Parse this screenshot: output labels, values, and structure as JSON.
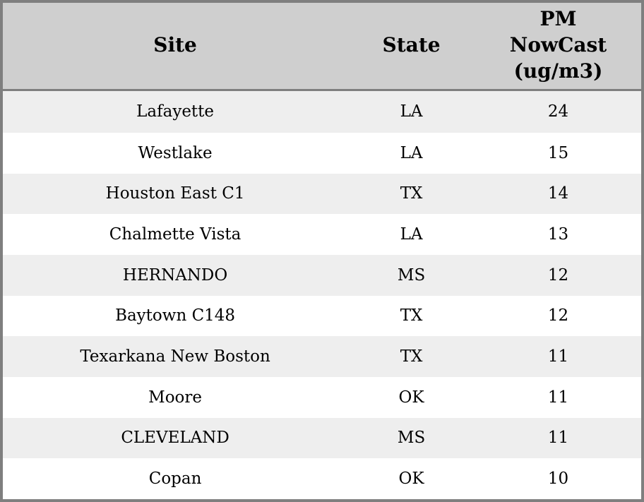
{
  "colors": {
    "header_bg": "#cfcfcf",
    "row_alt_bg": "#eeeeee",
    "row_bg": "#ffffff",
    "border": "#7f7f7f",
    "text": "#000000"
  },
  "table": {
    "columns": {
      "site": {
        "label": "Site"
      },
      "state": {
        "label": "State"
      },
      "pm": {
        "label": "PM\nNowCast\n(ug/m3)"
      }
    },
    "rows": [
      {
        "site": "Lafayette",
        "state": "LA",
        "pm": "24"
      },
      {
        "site": "Westlake",
        "state": "LA",
        "pm": "15"
      },
      {
        "site": "Houston East C1",
        "state": "TX",
        "pm": "14"
      },
      {
        "site": "Chalmette Vista",
        "state": "LA",
        "pm": "13"
      },
      {
        "site": "HERNANDO",
        "state": "MS",
        "pm": "12"
      },
      {
        "site": "Baytown C148",
        "state": "TX",
        "pm": "12"
      },
      {
        "site": "Texarkana New Boston",
        "state": "TX",
        "pm": "11"
      },
      {
        "site": "Moore",
        "state": "OK",
        "pm": "11"
      },
      {
        "site": "CLEVELAND",
        "state": "MS",
        "pm": "11"
      },
      {
        "site": "Copan",
        "state": "OK",
        "pm": "10"
      }
    ]
  },
  "chart_data": {
    "type": "table",
    "title": "",
    "columns": [
      "Site",
      "State",
      "PM NowCast (ug/m3)"
    ],
    "rows": [
      [
        "Lafayette",
        "LA",
        24
      ],
      [
        "Westlake",
        "LA",
        15
      ],
      [
        "Houston East C1",
        "TX",
        14
      ],
      [
        "Chalmette Vista",
        "LA",
        13
      ],
      [
        "HERNANDO",
        "MS",
        12
      ],
      [
        "Baytown C148",
        "TX",
        12
      ],
      [
        "Texarkana New Boston",
        "TX",
        11
      ],
      [
        "Moore",
        "OK",
        11
      ],
      [
        "CLEVELAND",
        "MS",
        11
      ],
      [
        "Copan",
        "OK",
        10
      ]
    ],
    "layout_hints": {
      "header_fill": "#cfcfcf",
      "alternating_row_fill": [
        "#eeeeee",
        "#ffffff"
      ],
      "cell_alignment": "center"
    }
  }
}
